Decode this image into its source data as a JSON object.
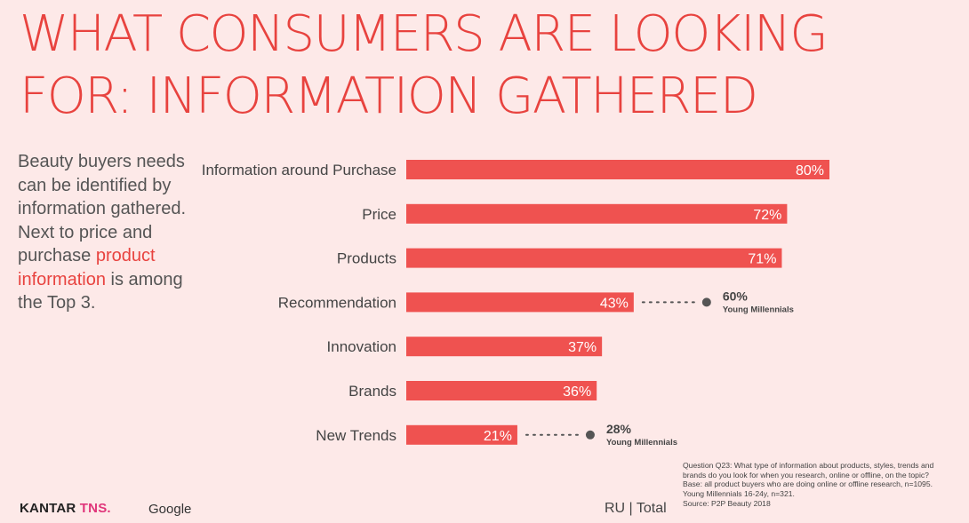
{
  "title": {
    "line1": "WHAT CONSUMERS ARE LOOKING",
    "line2": "FOR: INFORMATION GATHERED"
  },
  "sidebar": {
    "part1": "Beauty buyers needs can be identified by information gathered. Next to price and purchase ",
    "highlight": "product information",
    "part2": " is among the Top 3."
  },
  "chart_data": {
    "type": "bar",
    "orientation": "horizontal",
    "categories": [
      "Information around Purchase",
      "Price",
      "Products",
      "Recommendation",
      "Innovation",
      "Brands",
      "New Trends"
    ],
    "values": [
      80,
      72,
      71,
      43,
      37,
      36,
      21
    ],
    "value_suffix": "%",
    "xlim": [
      0,
      100
    ],
    "grid": false,
    "bar_color": "#ef5250",
    "annotations": [
      {
        "category": "Recommendation",
        "value": "60%",
        "label": "Young Millennials"
      },
      {
        "category": "New Trends",
        "value": "28%",
        "label": "Young Millennials"
      }
    ]
  },
  "footer": {
    "brand": "KANTAR",
    "brand_suffix": "TNS.",
    "partner": "Google",
    "scope": "RU | Total",
    "note_lines": [
      "Question Q23: What type of information about products, styles, trends and",
      "brands do you look for when you research, online or offline, on the topic?",
      "Base: all product buyers who are doing online or offline research, n=1095.",
      "Young Millennials 16-24y, n=321.",
      "Source: P2P Beauty 2018"
    ]
  }
}
